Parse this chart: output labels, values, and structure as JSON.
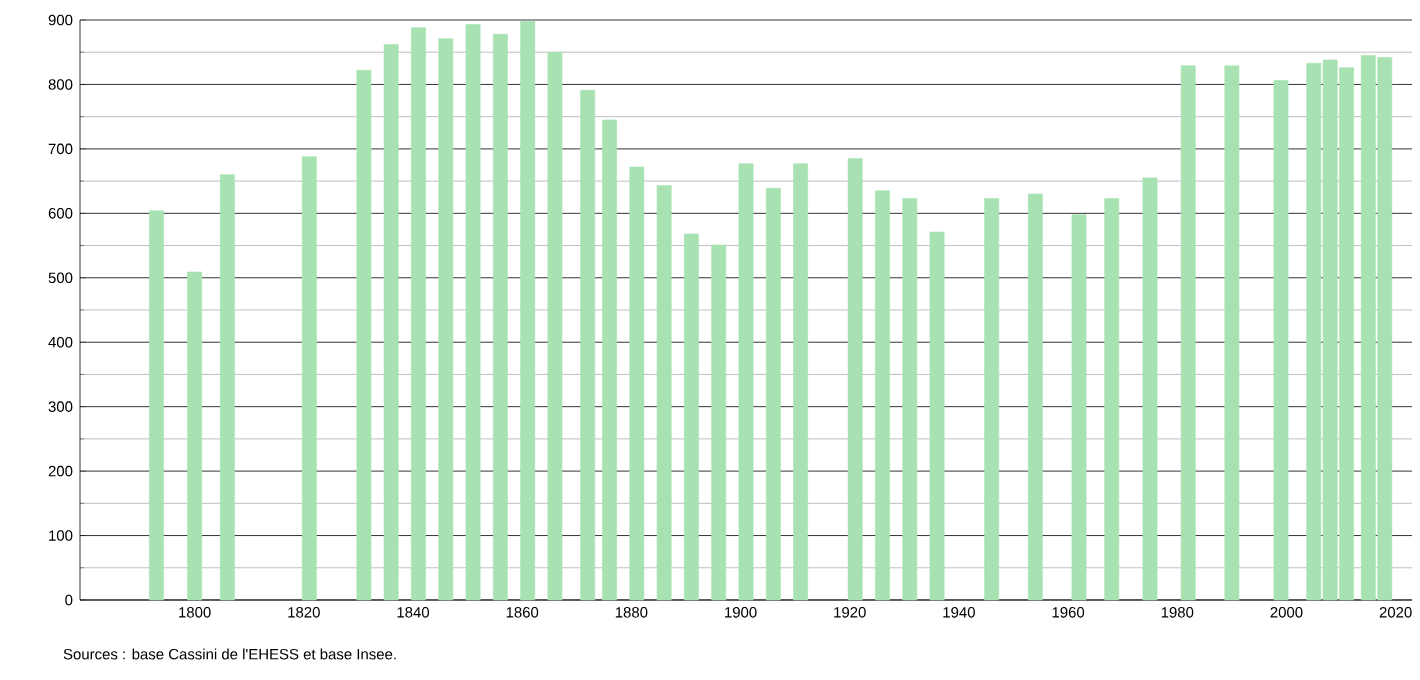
{
  "chart_data": {
    "type": "bar",
    "x": [
      1793,
      1800,
      1806,
      1821,
      1831,
      1836,
      1841,
      1846,
      1851,
      1856,
      1861,
      1866,
      1872,
      1876,
      1881,
      1886,
      1891,
      1896,
      1901,
      1906,
      1911,
      1921,
      1926,
      1931,
      1936,
      1946,
      1954,
      1962,
      1968,
      1975,
      1982,
      1990,
      1999,
      2005,
      2008,
      2011,
      2015,
      2018
    ],
    "values": [
      604,
      509,
      660,
      688,
      822,
      862,
      888,
      871,
      893,
      878,
      898,
      850,
      791,
      745,
      672,
      643,
      568,
      551,
      677,
      639,
      677,
      685,
      635,
      623,
      571,
      623,
      630,
      598,
      623,
      655,
      829,
      829,
      806,
      833,
      838,
      826,
      845,
      842
    ],
    "color": "#a8e2b2",
    "xlim": [
      1779,
      2023
    ],
    "xticks": [
      1800,
      1820,
      1840,
      1860,
      1880,
      1900,
      1920,
      1940,
      1960,
      1980,
      2000,
      2020
    ],
    "ylim": [
      0,
      900
    ],
    "yticks": [
      0,
      100,
      200,
      300,
      400,
      500,
      600,
      700,
      800,
      900
    ],
    "grid": "y",
    "annotations": [
      "Sources : base Cassini de l'EHESS et base Insee."
    ]
  }
}
